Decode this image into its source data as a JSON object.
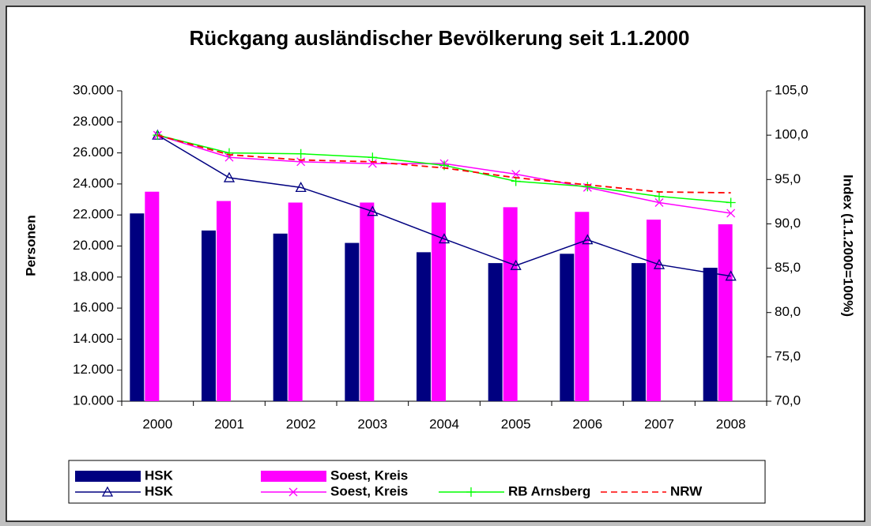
{
  "chart_data": {
    "type": "bar",
    "title": "Rückgang ausländischer Bevölkerung seit 1.1.2000",
    "y_label": "Personen",
    "y2_label": "Index (1.1.2000=100%)",
    "categories": [
      "2000",
      "2001",
      "2002",
      "2003",
      "2004",
      "2005",
      "2006",
      "2007",
      "2008"
    ],
    "ylim": [
      10000,
      30000
    ],
    "yticks": [
      {
        "value": 10000,
        "label": "10.000"
      },
      {
        "value": 12000,
        "label": "12.000"
      },
      {
        "value": 14000,
        "label": "14.000"
      },
      {
        "value": 16000,
        "label": "16.000"
      },
      {
        "value": 18000,
        "label": "18.000"
      },
      {
        "value": 20000,
        "label": "20.000"
      },
      {
        "value": 22000,
        "label": "22.000"
      },
      {
        "value": 24000,
        "label": "24.000"
      },
      {
        "value": 26000,
        "label": "26.000"
      },
      {
        "value": 28000,
        "label": "28.000"
      },
      {
        "value": 30000,
        "label": "30.000"
      }
    ],
    "y2lim": [
      70,
      105
    ],
    "y2ticks": [
      {
        "value": 70,
        "label": "70,0"
      },
      {
        "value": 75,
        "label": "75,0"
      },
      {
        "value": 80,
        "label": "80,0"
      },
      {
        "value": 85,
        "label": "85,0"
      },
      {
        "value": 90,
        "label": "90,0"
      },
      {
        "value": 95,
        "label": "95,0"
      },
      {
        "value": 100,
        "label": "100,0"
      },
      {
        "value": 105,
        "label": "105,0"
      }
    ],
    "legend": "bottom",
    "series": [
      {
        "name": "HSK",
        "type": "bar",
        "color": "#000080",
        "values": [
          22100,
          21000,
          20800,
          20200,
          19600,
          18900,
          19500,
          18900,
          18600
        ]
      },
      {
        "name": "Soest, Kreis",
        "type": "bar",
        "color": "#ff00ff",
        "values": [
          23500,
          22900,
          22800,
          22800,
          22800,
          22500,
          22200,
          21700,
          21400
        ]
      },
      {
        "name": "HSK",
        "type": "line",
        "axis": "y2",
        "color": "#000080",
        "marker": "triangle",
        "values": [
          100,
          95.2,
          94.1,
          91.4,
          88.3,
          85.3,
          88.2,
          85.4,
          84.1
        ]
      },
      {
        "name": "Soest, Kreis",
        "type": "line",
        "axis": "y2",
        "color": "#ff00ff",
        "marker": "x",
        "values": [
          100,
          97.5,
          97.0,
          96.8,
          96.8,
          95.6,
          94.1,
          92.4,
          91.2
        ]
      },
      {
        "name": "RB Arnsberg",
        "type": "line",
        "axis": "y2",
        "color": "#00ff00",
        "marker": "plus",
        "values": [
          100,
          98.0,
          97.9,
          97.5,
          96.6,
          94.8,
          94.2,
          93.1,
          92.4
        ]
      },
      {
        "name": "NRW",
        "type": "line",
        "axis": "y2",
        "color": "#ff0000",
        "dash": true,
        "values": [
          100,
          97.8,
          97.2,
          97.0,
          96.3,
          95.2,
          94.4,
          93.6,
          93.5
        ]
      }
    ]
  }
}
